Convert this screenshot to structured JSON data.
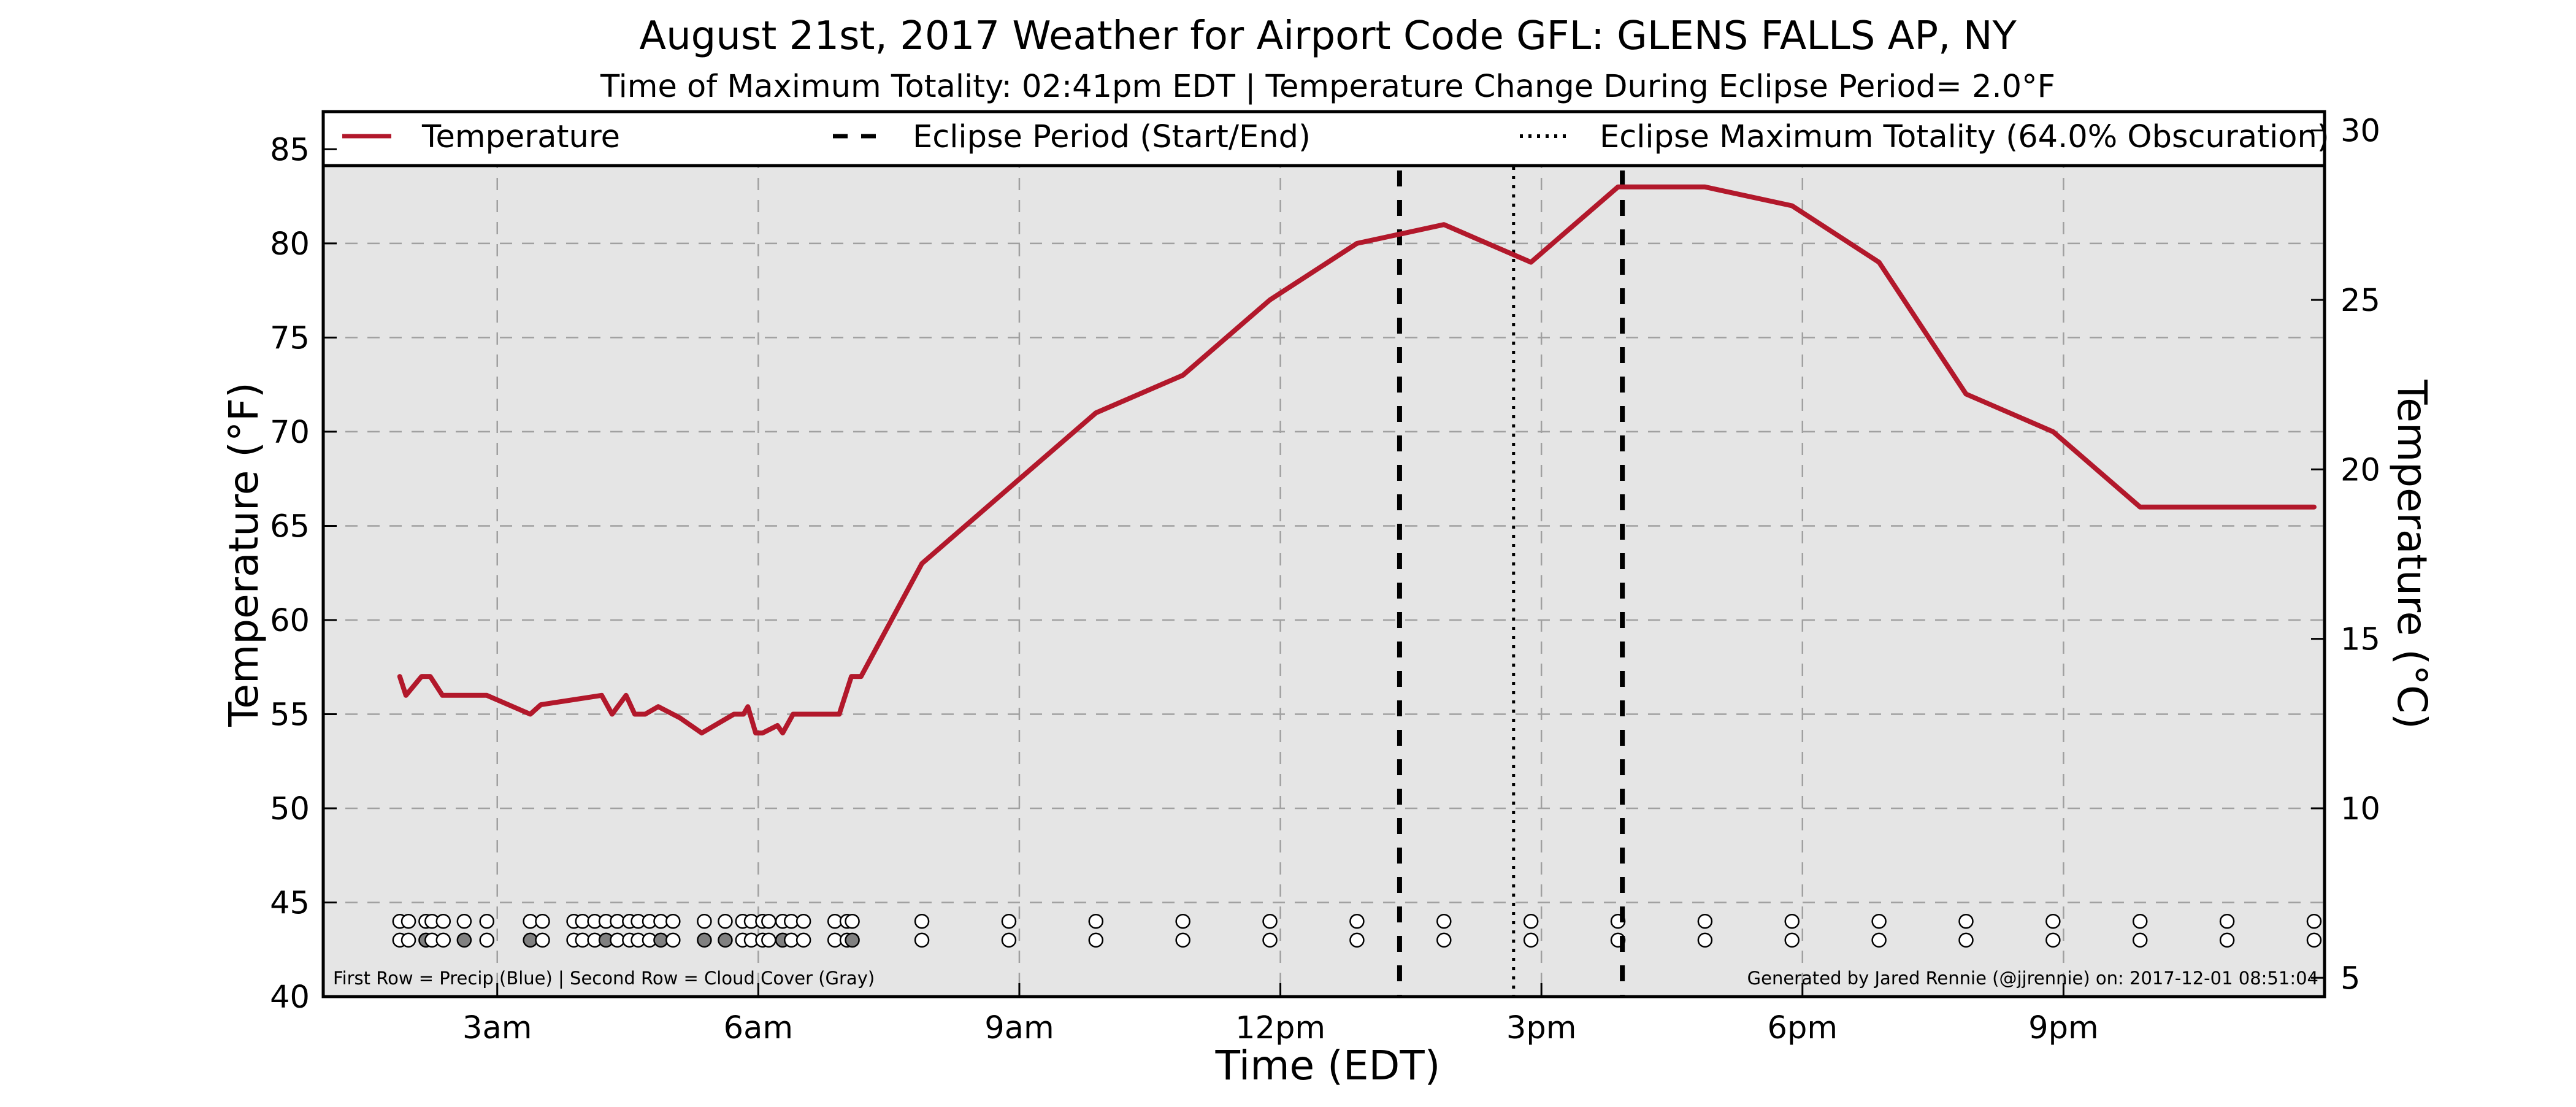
{
  "chart_data": {
    "type": "line",
    "title": "August 21st, 2017 Weather for Airport Code GFL: GLENS FALLS AP, NY",
    "subtitle": "Time of Maximum Totality: 02:41pm EDT | Temperature Change During Eclipse Period= 2.0°F",
    "xlabel": "Time (EDT)",
    "ylabel": "Temperature (°F)",
    "ylabel_right": "Temperature (°C)",
    "xlim": [
      1,
      24
    ],
    "ylim": [
      40,
      87
    ],
    "ylim_right_celsius": [
      4.44,
      30.56
    ],
    "x_ticks": [
      {
        "x": 3,
        "label": "3am"
      },
      {
        "x": 6,
        "label": "6am"
      },
      {
        "x": 9,
        "label": "9am"
      },
      {
        "x": 12,
        "label": "12pm"
      },
      {
        "x": 15,
        "label": "3pm"
      },
      {
        "x": 18,
        "label": "6pm"
      },
      {
        "x": 21,
        "label": "9pm"
      }
    ],
    "y_ticks": [
      40,
      45,
      50,
      55,
      60,
      65,
      70,
      75,
      80,
      85
    ],
    "y_ticks_right": [
      5,
      10,
      15,
      20,
      25,
      30
    ],
    "grid": true,
    "legend": {
      "placement": "top",
      "entries": [
        {
          "label": "Temperature",
          "style": "solid",
          "color": "#b2182b"
        },
        {
          "label": "Eclipse Period (Start/End)",
          "style": "dashed",
          "color": "#000000"
        },
        {
          "label": "Eclipse Maximum Totality (64.0% Obscuration)",
          "style": "dotted",
          "color": "#000000"
        }
      ]
    },
    "series": [
      {
        "name": "Temperature",
        "color": "#b2182b",
        "x": [
          1.88,
          1.95,
          2.13,
          2.23,
          2.37,
          2.88,
          3.38,
          3.5,
          4.2,
          4.32,
          4.48,
          4.58,
          4.7,
          4.85,
          5.1,
          5.35,
          5.72,
          5.83,
          5.88,
          5.97,
          6.05,
          6.22,
          6.28,
          6.4,
          6.93,
          7.07,
          7.18,
          7.88,
          8.88,
          9.88,
          10.88,
          11.88,
          12.88,
          13.88,
          14.88,
          15.88,
          16.88,
          17.88,
          18.88,
          19.88,
          20.88,
          21.88,
          22.88,
          23.88
        ],
        "values": [
          57,
          56,
          57,
          57,
          56,
          56,
          55,
          55.5,
          56,
          55,
          56,
          55,
          55,
          55.4,
          54.8,
          54,
          55,
          55,
          55.4,
          54,
          54,
          54.4,
          54,
          55,
          55,
          57,
          57,
          63,
          67,
          71,
          73,
          77,
          80,
          81,
          79,
          83,
          83,
          82,
          79,
          72,
          70,
          66,
          66,
          66
        ]
      }
    ],
    "eclipse": {
      "start_x": 13.37,
      "end_x": 15.93,
      "max_totality_x": 14.68,
      "max_totality_label": "02:41pm EDT",
      "obscuration_pct": 64.0
    },
    "precip_row": {
      "y": 44,
      "x": [
        1.88,
        1.98,
        2.18,
        2.25,
        2.38,
        2.62,
        2.88,
        3.38,
        3.52,
        3.88,
        3.98,
        4.12,
        4.25,
        4.38,
        4.52,
        4.62,
        4.75,
        4.88,
        5.02,
        5.38,
        5.62,
        5.82,
        5.92,
        6.05,
        6.12,
        6.28,
        6.38,
        6.52,
        6.88,
        7.02,
        7.08,
        7.88,
        8.88,
        9.88,
        10.88,
        11.88,
        12.88,
        13.88,
        14.88,
        15.88,
        16.88,
        17.88,
        18.88,
        19.88,
        20.88,
        21.88,
        22.88,
        23.88
      ],
      "filled": [
        false,
        false,
        false,
        false,
        false,
        false,
        false,
        false,
        false,
        false,
        false,
        false,
        false,
        false,
        false,
        false,
        false,
        false,
        false,
        false,
        false,
        false,
        false,
        false,
        false,
        false,
        false,
        false,
        false,
        false,
        false,
        false,
        false,
        false,
        false,
        false,
        false,
        false,
        false,
        false,
        false,
        false,
        false,
        false,
        false,
        false,
        false,
        false
      ]
    },
    "cloud_row": {
      "y": 43,
      "x": [
        1.88,
        1.98,
        2.18,
        2.25,
        2.38,
        2.62,
        2.88,
        3.38,
        3.52,
        3.88,
        3.98,
        4.12,
        4.25,
        4.38,
        4.52,
        4.62,
        4.75,
        4.88,
        5.02,
        5.38,
        5.62,
        5.82,
        5.92,
        6.05,
        6.12,
        6.28,
        6.38,
        6.52,
        6.88,
        7.02,
        7.08,
        7.88,
        8.88,
        9.88,
        10.88,
        11.88,
        12.88,
        13.88,
        14.88,
        15.88,
        16.88,
        17.88,
        18.88,
        19.88,
        20.88,
        21.88,
        22.88,
        23.88
      ],
      "filled": [
        false,
        false,
        true,
        false,
        false,
        true,
        false,
        true,
        false,
        false,
        false,
        false,
        true,
        false,
        false,
        false,
        false,
        true,
        false,
        true,
        true,
        false,
        false,
        false,
        false,
        true,
        false,
        false,
        false,
        false,
        true,
        false,
        false,
        false,
        false,
        false,
        false,
        false,
        false,
        false,
        false,
        false,
        false,
        false,
        false,
        false,
        false,
        false
      ],
      "empty_color": "#ffffff",
      "filled_color": "#808080"
    },
    "footnote_left": "First Row = Precip (Blue) | Second Row = Cloud Cover (Gray)",
    "footnote_right": "Generated by Jared Rennie (@jjrennie) on: 2017-12-01 08:51:04",
    "colors": {
      "plot_background": "#e5e5e5",
      "grid": "#a0a0a0",
      "temperature_line": "#b2182b"
    }
  }
}
